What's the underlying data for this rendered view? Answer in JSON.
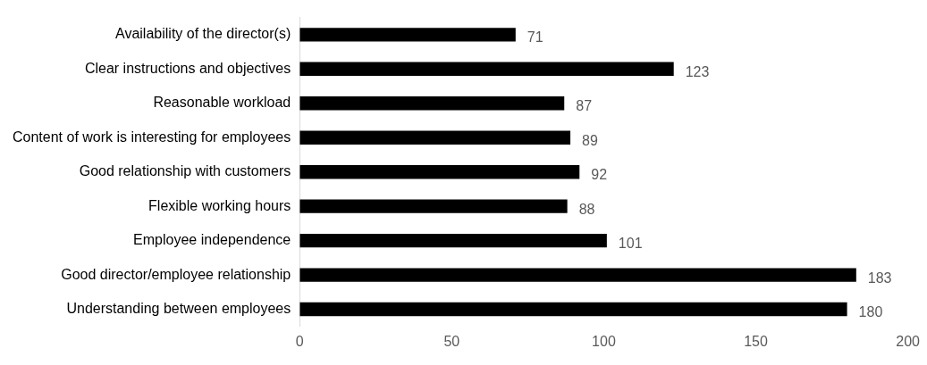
{
  "chart_data": {
    "type": "bar",
    "orientation": "horizontal",
    "categories": [
      "Availability of the director(s)",
      "Clear instructions and objectives",
      "Reasonable workload",
      "Content of work is interesting for employees",
      "Good relationship with customers",
      "Flexible working hours",
      "Employee independence",
      "Good director/employee relationship",
      "Understanding between employees"
    ],
    "values": [
      71,
      123,
      87,
      89,
      92,
      88,
      101,
      183,
      180
    ],
    "color": "#000000",
    "xlim": [
      0,
      200
    ],
    "xticks": [
      0,
      50,
      100,
      150,
      200
    ],
    "grid": false,
    "legend": false,
    "data_labels": true
  }
}
